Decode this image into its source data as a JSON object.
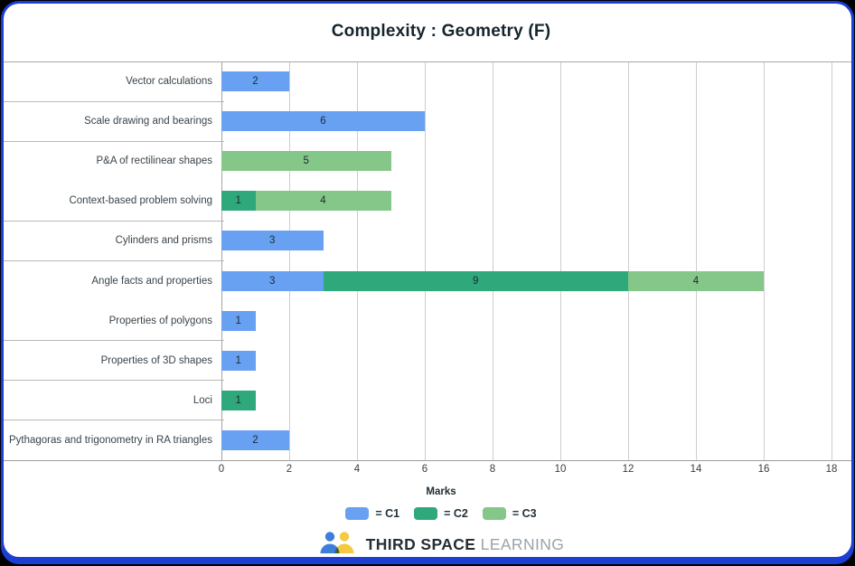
{
  "title": "Complexity : Geometry (F)",
  "chart_data": {
    "type": "bar",
    "orientation": "horizontal",
    "title": "Complexity : Geometry (F)",
    "xlabel": "Marks",
    "xlim": [
      0,
      18.6
    ],
    "x_ticks": [
      0,
      2,
      4,
      6,
      8,
      10,
      12,
      14,
      16,
      18
    ],
    "grid": "vertical",
    "legend_position": "bottom",
    "categories": [
      "Vector calculations",
      "Scale drawing and bearings",
      "P&A of rectilinear shapes",
      "Context-based problem solving",
      "Cylinders and prisms",
      "Angle facts and properties",
      "Properties of polygons",
      "Properties of 3D shapes",
      "Loci",
      "Pythagoras and trigonometry in RA triangles"
    ],
    "series": [
      {
        "name": "C1",
        "color": "#68a1f1",
        "values": [
          2,
          6,
          0,
          0,
          3,
          3,
          1,
          1,
          0,
          2
        ]
      },
      {
        "name": "C2",
        "color": "#2fa87c",
        "values": [
          0,
          0,
          0,
          1,
          0,
          9,
          0,
          0,
          1,
          0
        ]
      },
      {
        "name": "C3",
        "color": "#85c689",
        "values": [
          0,
          0,
          5,
          4,
          0,
          4,
          0,
          0,
          0,
          0
        ]
      }
    ],
    "row_separators_after": [
      1,
      2,
      4,
      5,
      7,
      8,
      9
    ]
  },
  "legend": {
    "items": [
      {
        "label": "= C1",
        "color": "#68a1f1"
      },
      {
        "label": "= C2",
        "color": "#2fa87c"
      },
      {
        "label": "= C3",
        "color": "#85c689"
      }
    ]
  },
  "footer": {
    "brand_primary": "THIRD SPACE",
    "brand_secondary": "LEARNING"
  },
  "colors": {
    "window_border": "#1c3ed3",
    "logo_blue": "#3d7edc",
    "logo_yellow": "#f3ca41"
  }
}
